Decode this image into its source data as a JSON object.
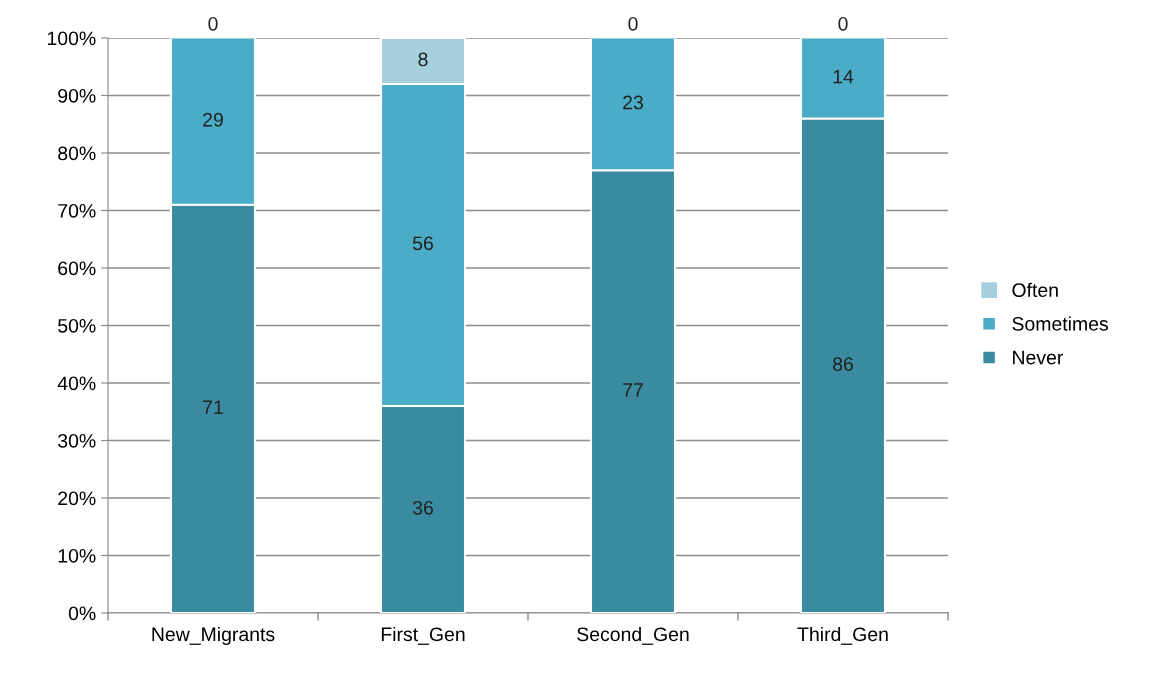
{
  "chart_data": {
    "type": "bar",
    "stacked": true,
    "categories": [
      "New_Migrants",
      "First_Gen",
      "Second_Gen",
      "Third_Gen"
    ],
    "series": [
      {
        "name": "Never",
        "color": "#3b8ba0",
        "values": [
          71,
          36,
          77,
          86
        ]
      },
      {
        "name": "Sometimes",
        "color": "#4aacc6",
        "values": [
          29,
          56,
          23,
          14
        ]
      },
      {
        "name": "Often",
        "color": "#a5cfdc",
        "values": [
          0,
          8,
          0,
          0
        ]
      }
    ],
    "ylim": [
      0,
      100
    ],
    "yticks": [
      {
        "value": 0,
        "label": "0%"
      },
      {
        "value": 10,
        "label": "10%"
      },
      {
        "value": 20,
        "label": "20%"
      },
      {
        "value": 30,
        "label": "30%"
      },
      {
        "value": 40,
        "label": "40%"
      },
      {
        "value": 50,
        "label": "50%"
      },
      {
        "value": 60,
        "label": "60%"
      },
      {
        "value": 70,
        "label": "70%"
      },
      {
        "value": 80,
        "label": "80%"
      },
      {
        "value": 90,
        "label": "90%"
      },
      {
        "value": 100,
        "label": "100%"
      }
    ],
    "grid": "y",
    "legend": "right",
    "data_labels": true
  }
}
